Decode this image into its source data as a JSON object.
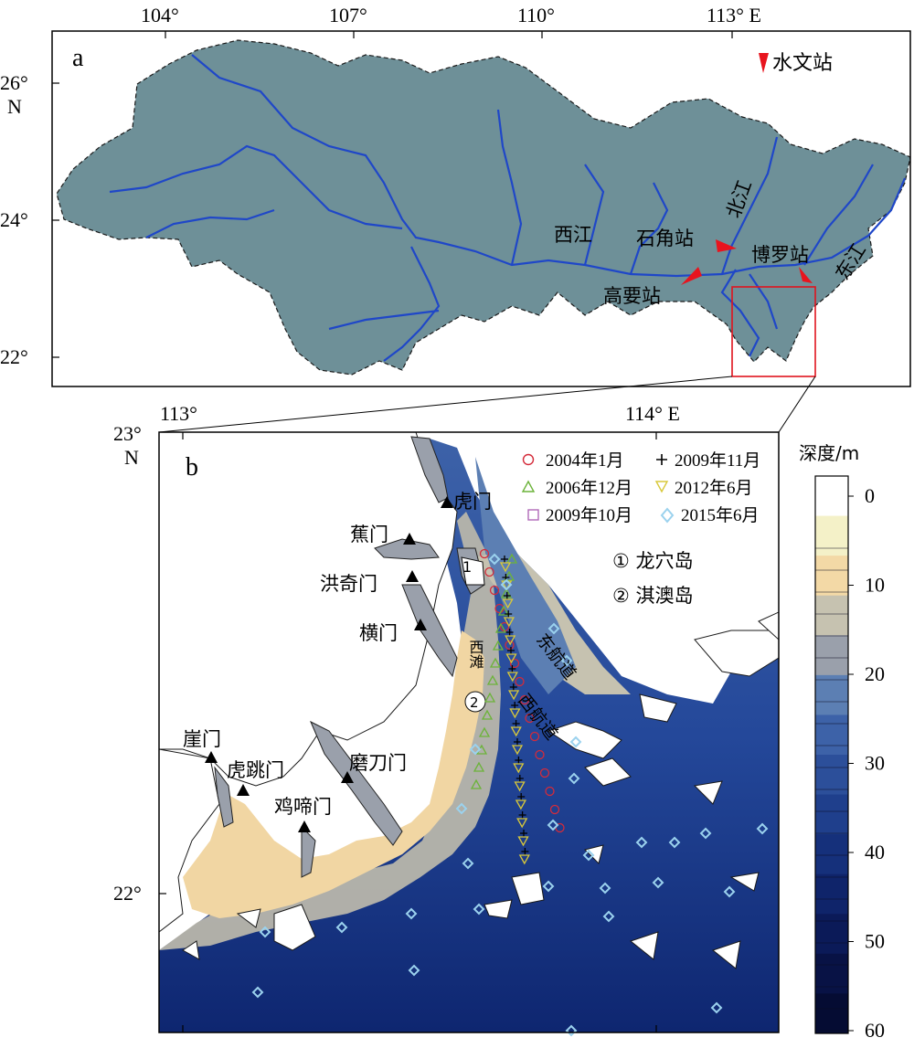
{
  "panel_a": {
    "label": "a",
    "lon_ticks": [
      "104°",
      "107°",
      "110°",
      "113° E"
    ],
    "lat_ticks": [
      "26°",
      "24°",
      "22°"
    ],
    "lat_unit": "N",
    "legend_station": "水文站",
    "rivers": [
      "西江",
      "北江",
      "东江"
    ],
    "stations": [
      "石角站",
      "高要站",
      "博罗站"
    ],
    "colors": {
      "basin": "#6e9098",
      "river": "#1f47c8",
      "station": "#e8141e",
      "inset_box": "#e0141e"
    }
  },
  "panel_b": {
    "label": "b",
    "lon_ticks": [
      "113°",
      "114° E"
    ],
    "lat_ticks": [
      "23°",
      "22°"
    ],
    "lat_unit": "N",
    "gates": [
      "虎门",
      "蕉门",
      "洪奇门",
      "横门",
      "崖门",
      "虎跳门",
      "磨刀门",
      "鸡啼门"
    ],
    "islands": [
      "① 龙穴岛",
      "② 淇澳岛"
    ],
    "island_marks": [
      "1",
      "2"
    ],
    "channels": [
      "西滩",
      "东航道",
      "西航道"
    ],
    "legend": [
      {
        "symbol": "circle",
        "label": "2004年1月",
        "color": "#d42b3a"
      },
      {
        "symbol": "plus",
        "label": "2009年11月",
        "color": "#000000"
      },
      {
        "symbol": "triangle-up",
        "label": "2006年12月",
        "color": "#6cb33a"
      },
      {
        "symbol": "triangle-down",
        "label": "2012年6月",
        "color": "#d8c83a"
      },
      {
        "symbol": "square",
        "label": "2009年10月",
        "color": "#b06ab8"
      },
      {
        "symbol": "diamond",
        "label": "2015年6月",
        "color": "#9bd2ee"
      }
    ],
    "colorbar": {
      "title": "深度/m",
      "ticks": [
        "0",
        "10",
        "20",
        "30",
        "40",
        "50",
        "60"
      ],
      "stops": [
        "#ffffff",
        "#f4f1c8",
        "#f3d9a6",
        "#c6c2b0",
        "#9aa0ab",
        "#5c7fb3",
        "#3d62a8",
        "#2c4f9a",
        "#1f3f8c",
        "#15307b",
        "#0f246a",
        "#0b1a58",
        "#081245",
        "#050c33"
      ]
    }
  }
}
